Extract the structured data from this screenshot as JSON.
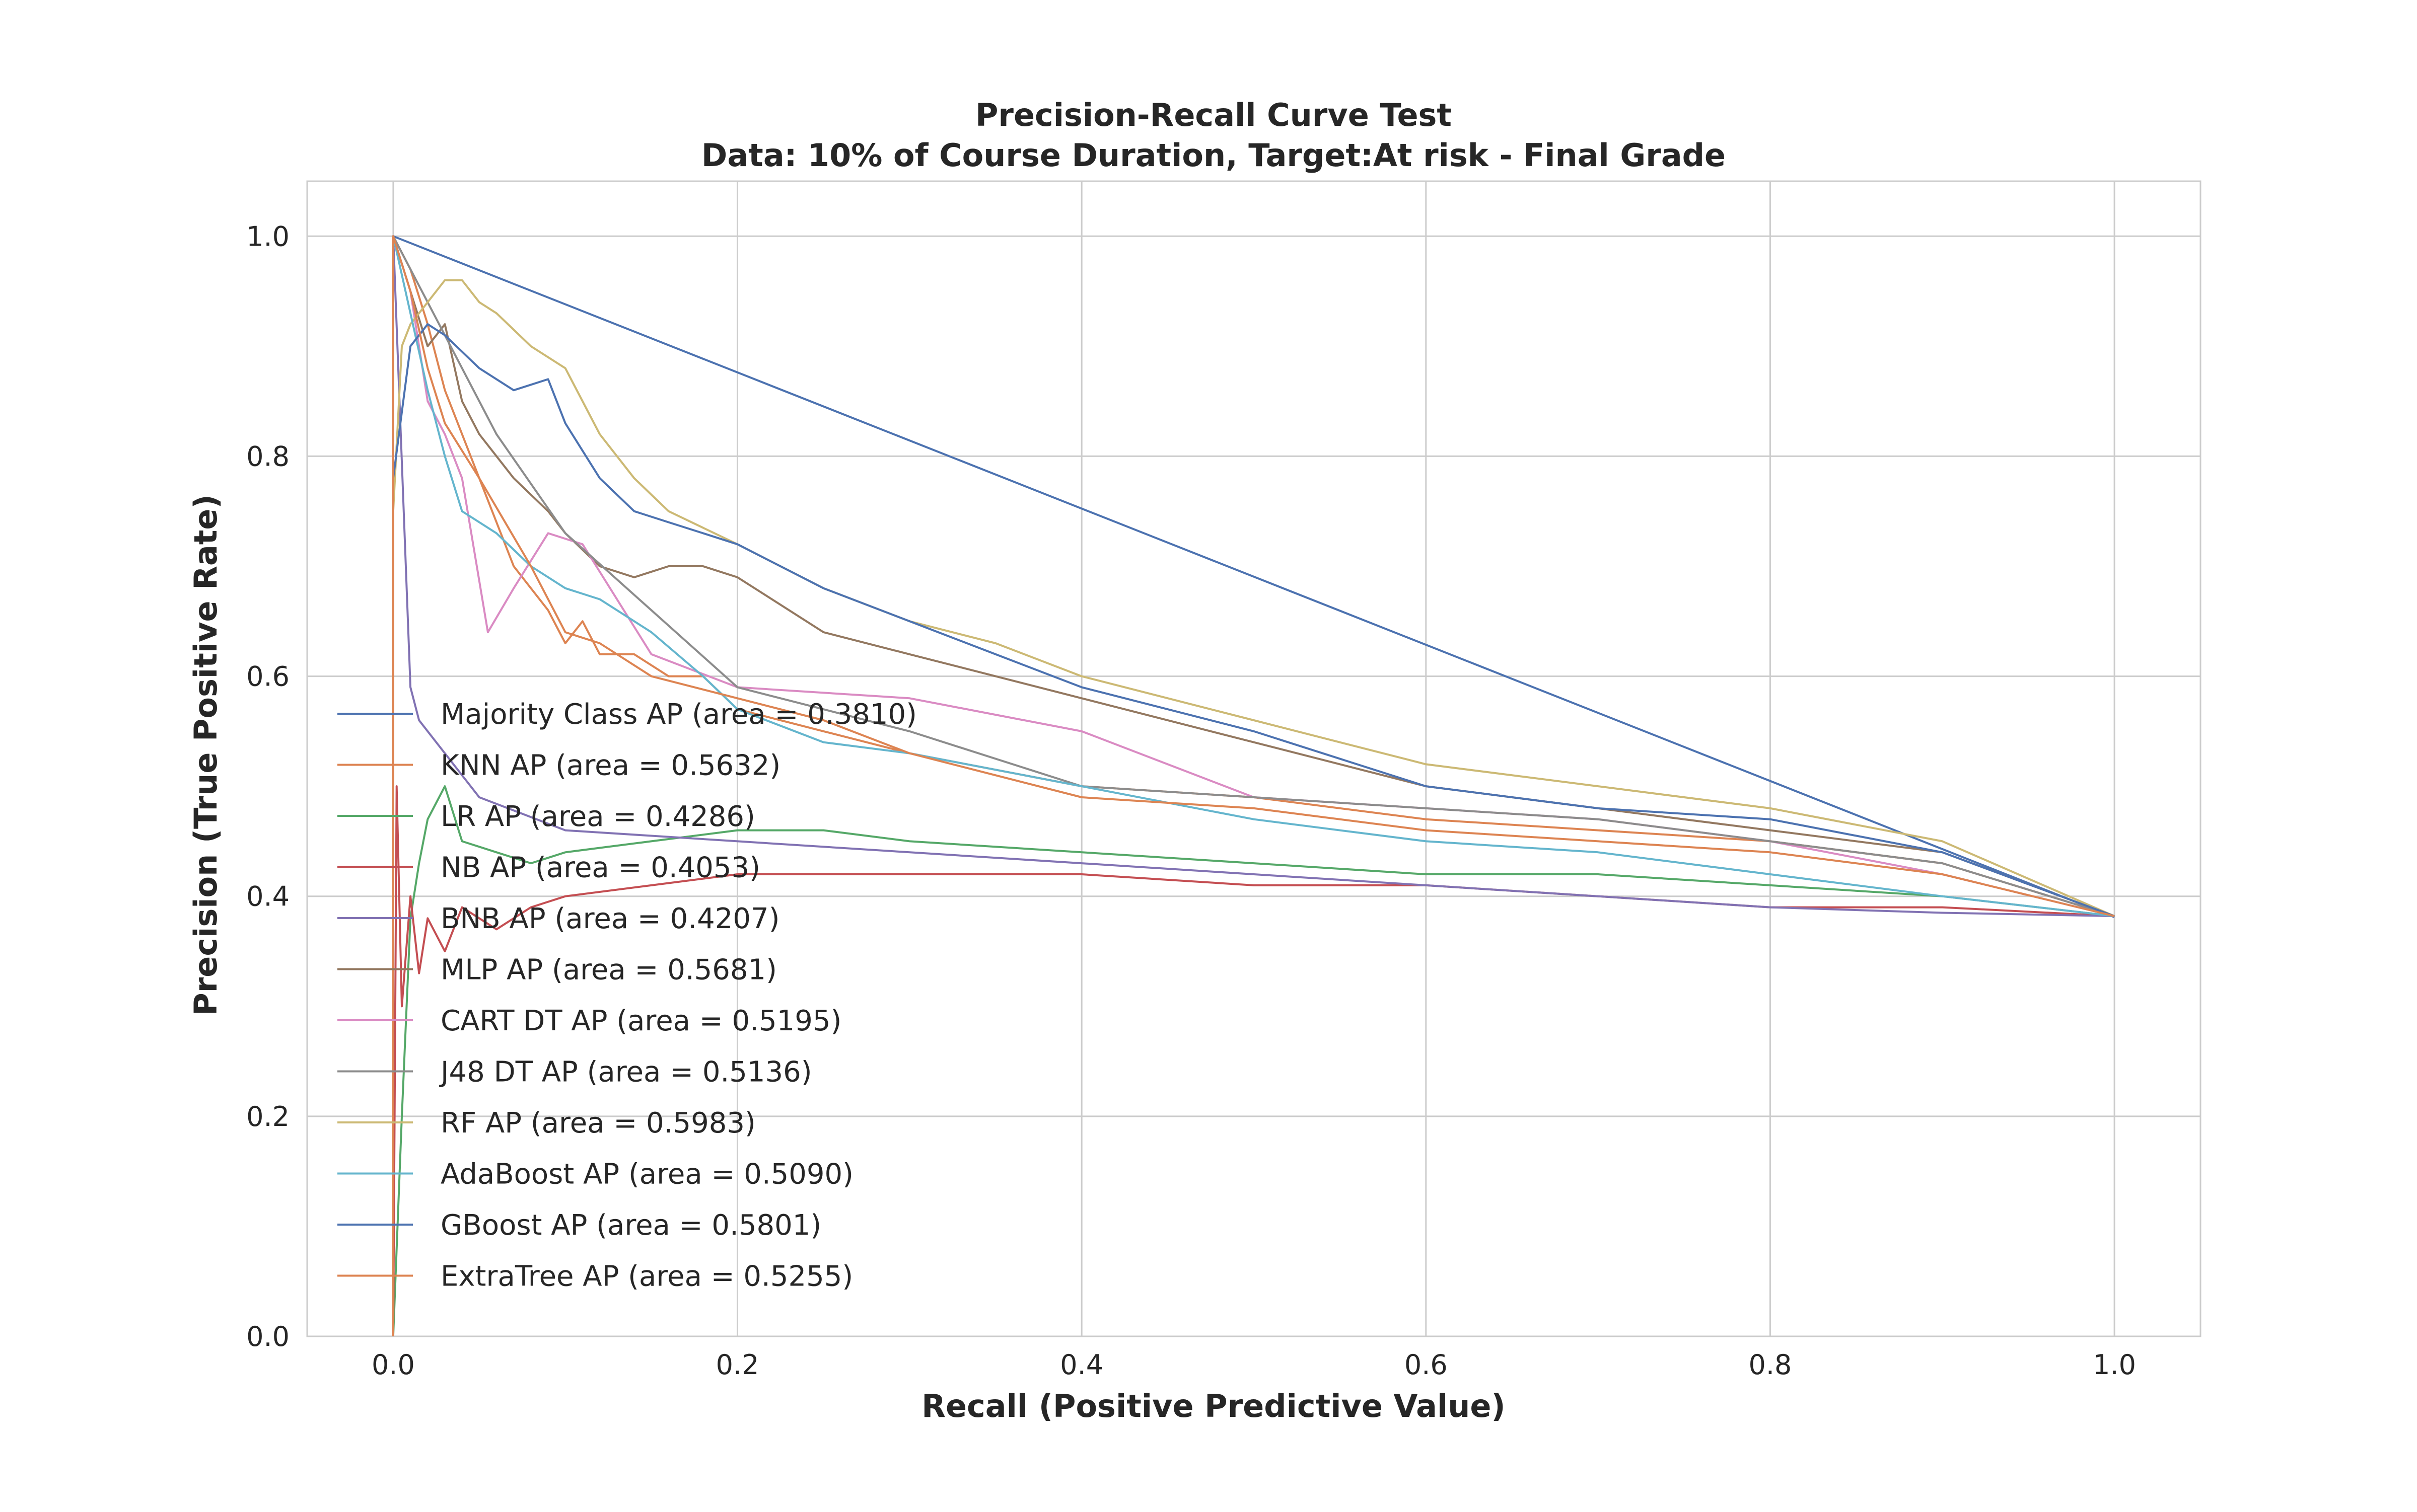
{
  "chart_data": {
    "type": "line",
    "title": "Precision-Recall Curve Test",
    "subtitle": "Data: 10% of Course Duration, Target:At risk - Final Grade",
    "xlabel": "Recall (Positive Predictive Value)",
    "ylabel": "Precision (True Positive Rate)",
    "xlim": [
      -0.05,
      1.05
    ],
    "ylim": [
      0.0,
      1.05
    ],
    "xticks": [
      "0.0",
      "0.2",
      "0.4",
      "0.6",
      "0.8",
      "1.0"
    ],
    "yticks": [
      "0.0",
      "0.2",
      "0.4",
      "0.6",
      "0.8",
      "1.0"
    ],
    "xtick_values": [
      0.0,
      0.2,
      0.4,
      0.6,
      0.8,
      1.0
    ],
    "ytick_values": [
      0.0,
      0.2,
      0.4,
      0.6,
      0.8,
      1.0
    ],
    "grid": true,
    "legend_position": "center-left",
    "series": [
      {
        "name": "Majority Class AP (area = 0.3810)",
        "color": "#4c72b0",
        "x": [
          0.0,
          0.0,
          1.0
        ],
        "y": [
          0.0,
          1.0,
          0.381
        ]
      },
      {
        "name": "KNN AP (area = 0.5632)",
        "color": "#dd8452",
        "x": [
          0.0,
          0.0,
          0.01,
          0.02,
          0.03,
          0.05,
          0.07,
          0.09,
          0.1,
          0.11,
          0.12,
          0.14,
          0.16,
          0.18,
          0.2,
          0.25,
          0.3,
          0.4,
          0.5,
          0.6,
          0.7,
          0.8,
          0.9,
          1.0
        ],
        "y": [
          0.0,
          1.0,
          0.97,
          0.92,
          0.86,
          0.78,
          0.7,
          0.66,
          0.63,
          0.65,
          0.62,
          0.62,
          0.6,
          0.6,
          0.57,
          0.55,
          0.53,
          0.5,
          0.49,
          0.47,
          0.46,
          0.45,
          0.43,
          0.382
        ]
      },
      {
        "name": "LR AP (area = 0.4286)",
        "color": "#55a868",
        "x": [
          0.0,
          0.005,
          0.01,
          0.015,
          0.02,
          0.03,
          0.04,
          0.06,
          0.08,
          0.1,
          0.15,
          0.2,
          0.25,
          0.3,
          0.4,
          0.5,
          0.6,
          0.7,
          0.8,
          0.9,
          1.0
        ],
        "y": [
          0.0,
          0.2,
          0.38,
          0.43,
          0.47,
          0.5,
          0.45,
          0.44,
          0.43,
          0.44,
          0.45,
          0.46,
          0.46,
          0.45,
          0.44,
          0.43,
          0.42,
          0.42,
          0.41,
          0.4,
          0.382
        ]
      },
      {
        "name": "NB AP (area = 0.4053)",
        "color": "#c44e52",
        "x": [
          0.0,
          0.002,
          0.005,
          0.01,
          0.015,
          0.02,
          0.03,
          0.04,
          0.06,
          0.08,
          0.1,
          0.15,
          0.2,
          0.25,
          0.3,
          0.4,
          0.5,
          0.6,
          0.7,
          0.8,
          0.9,
          1.0
        ],
        "y": [
          0.0,
          0.5,
          0.3,
          0.4,
          0.33,
          0.38,
          0.35,
          0.39,
          0.37,
          0.39,
          0.4,
          0.41,
          0.42,
          0.42,
          0.42,
          0.42,
          0.41,
          0.41,
          0.4,
          0.39,
          0.39,
          0.382
        ]
      },
      {
        "name": "BNB AP (area = 0.4207)",
        "color": "#8172b3",
        "x": [
          0.0,
          0.0,
          0.01,
          0.015,
          0.05,
          0.1,
          0.2,
          0.3,
          0.4,
          0.5,
          0.6,
          0.7,
          0.8,
          0.9,
          1.0
        ],
        "y": [
          0.0,
          1.0,
          0.59,
          0.56,
          0.49,
          0.46,
          0.45,
          0.44,
          0.43,
          0.42,
          0.41,
          0.4,
          0.39,
          0.385,
          0.382
        ]
      },
      {
        "name": "MLP AP (area = 0.5681)",
        "color": "#937860",
        "x": [
          0.0,
          0.0,
          0.01,
          0.02,
          0.03,
          0.04,
          0.05,
          0.07,
          0.09,
          0.1,
          0.12,
          0.14,
          0.16,
          0.18,
          0.2,
          0.25,
          0.3,
          0.35,
          0.4,
          0.5,
          0.6,
          0.7,
          0.8,
          0.9,
          1.0
        ],
        "y": [
          0.0,
          1.0,
          0.95,
          0.9,
          0.92,
          0.85,
          0.82,
          0.78,
          0.75,
          0.73,
          0.7,
          0.69,
          0.7,
          0.7,
          0.69,
          0.64,
          0.62,
          0.6,
          0.58,
          0.54,
          0.5,
          0.48,
          0.46,
          0.44,
          0.382
        ]
      },
      {
        "name": "CART DT AP (area = 0.5195)",
        "color": "#da8bc3",
        "x": [
          0.0,
          0.0,
          0.01,
          0.02,
          0.03,
          0.04,
          0.055,
          0.07,
          0.09,
          0.11,
          0.15,
          0.2,
          0.3,
          0.4,
          0.5,
          0.6,
          0.7,
          0.8,
          0.9,
          1.0
        ],
        "y": [
          0.0,
          1.0,
          0.95,
          0.85,
          0.82,
          0.78,
          0.64,
          0.68,
          0.73,
          0.72,
          0.62,
          0.59,
          0.58,
          0.55,
          0.49,
          0.48,
          0.47,
          0.45,
          0.42,
          0.382
        ]
      },
      {
        "name": "J48 DT AP (area = 0.5136)",
        "color": "#8c8c8c",
        "x": [
          0.0,
          0.0,
          0.02,
          0.04,
          0.06,
          0.1,
          0.15,
          0.2,
          0.3,
          0.4,
          0.5,
          0.6,
          0.7,
          0.8,
          0.9,
          1.0
        ],
        "y": [
          0.0,
          1.0,
          0.94,
          0.88,
          0.82,
          0.73,
          0.66,
          0.59,
          0.55,
          0.5,
          0.49,
          0.48,
          0.47,
          0.45,
          0.43,
          0.382
        ]
      },
      {
        "name": "RF AP (area = 0.5983)",
        "color": "#ccb974",
        "x": [
          0.0,
          0.0,
          0.005,
          0.01,
          0.02,
          0.03,
          0.04,
          0.05,
          0.06,
          0.08,
          0.1,
          0.12,
          0.14,
          0.16,
          0.2,
          0.25,
          0.3,
          0.35,
          0.4,
          0.5,
          0.6,
          0.7,
          0.8,
          0.9,
          1.0
        ],
        "y": [
          0.0,
          0.75,
          0.9,
          0.92,
          0.94,
          0.96,
          0.96,
          0.94,
          0.93,
          0.9,
          0.88,
          0.82,
          0.78,
          0.75,
          0.72,
          0.68,
          0.65,
          0.63,
          0.6,
          0.56,
          0.52,
          0.5,
          0.48,
          0.45,
          0.382
        ]
      },
      {
        "name": "AdaBoost AP (area = 0.5090)",
        "color": "#64b5cd",
        "x": [
          0.0,
          0.0,
          0.01,
          0.02,
          0.03,
          0.04,
          0.05,
          0.06,
          0.08,
          0.1,
          0.12,
          0.15,
          0.18,
          0.2,
          0.25,
          0.3,
          0.4,
          0.5,
          0.6,
          0.7,
          0.8,
          0.9,
          1.0
        ],
        "y": [
          0.0,
          1.0,
          0.93,
          0.86,
          0.8,
          0.75,
          0.74,
          0.73,
          0.7,
          0.68,
          0.67,
          0.64,
          0.6,
          0.57,
          0.54,
          0.53,
          0.5,
          0.47,
          0.45,
          0.44,
          0.42,
          0.4,
          0.382
        ]
      },
      {
        "name": "GBoost AP (area = 0.5801)",
        "color": "#4c72b0",
        "x": [
          0.0,
          0.0,
          0.01,
          0.02,
          0.03,
          0.05,
          0.07,
          0.09,
          0.1,
          0.12,
          0.14,
          0.16,
          0.18,
          0.2,
          0.25,
          0.3,
          0.35,
          0.4,
          0.5,
          0.6,
          0.7,
          0.8,
          0.9,
          1.0
        ],
        "y": [
          0.0,
          0.78,
          0.9,
          0.92,
          0.91,
          0.88,
          0.86,
          0.87,
          0.83,
          0.78,
          0.75,
          0.74,
          0.73,
          0.72,
          0.68,
          0.65,
          0.62,
          0.59,
          0.55,
          0.5,
          0.48,
          0.47,
          0.44,
          0.382
        ]
      },
      {
        "name": "ExtraTree AP (area = 0.5255)",
        "color": "#dd8452",
        "x": [
          0.0,
          0.0,
          0.01,
          0.02,
          0.03,
          0.05,
          0.08,
          0.1,
          0.12,
          0.15,
          0.2,
          0.25,
          0.3,
          0.4,
          0.5,
          0.6,
          0.7,
          0.8,
          0.9,
          1.0
        ],
        "y": [
          0.0,
          1.0,
          0.95,
          0.88,
          0.83,
          0.78,
          0.7,
          0.64,
          0.63,
          0.6,
          0.58,
          0.56,
          0.53,
          0.49,
          0.48,
          0.46,
          0.45,
          0.44,
          0.42,
          0.382
        ]
      }
    ]
  }
}
